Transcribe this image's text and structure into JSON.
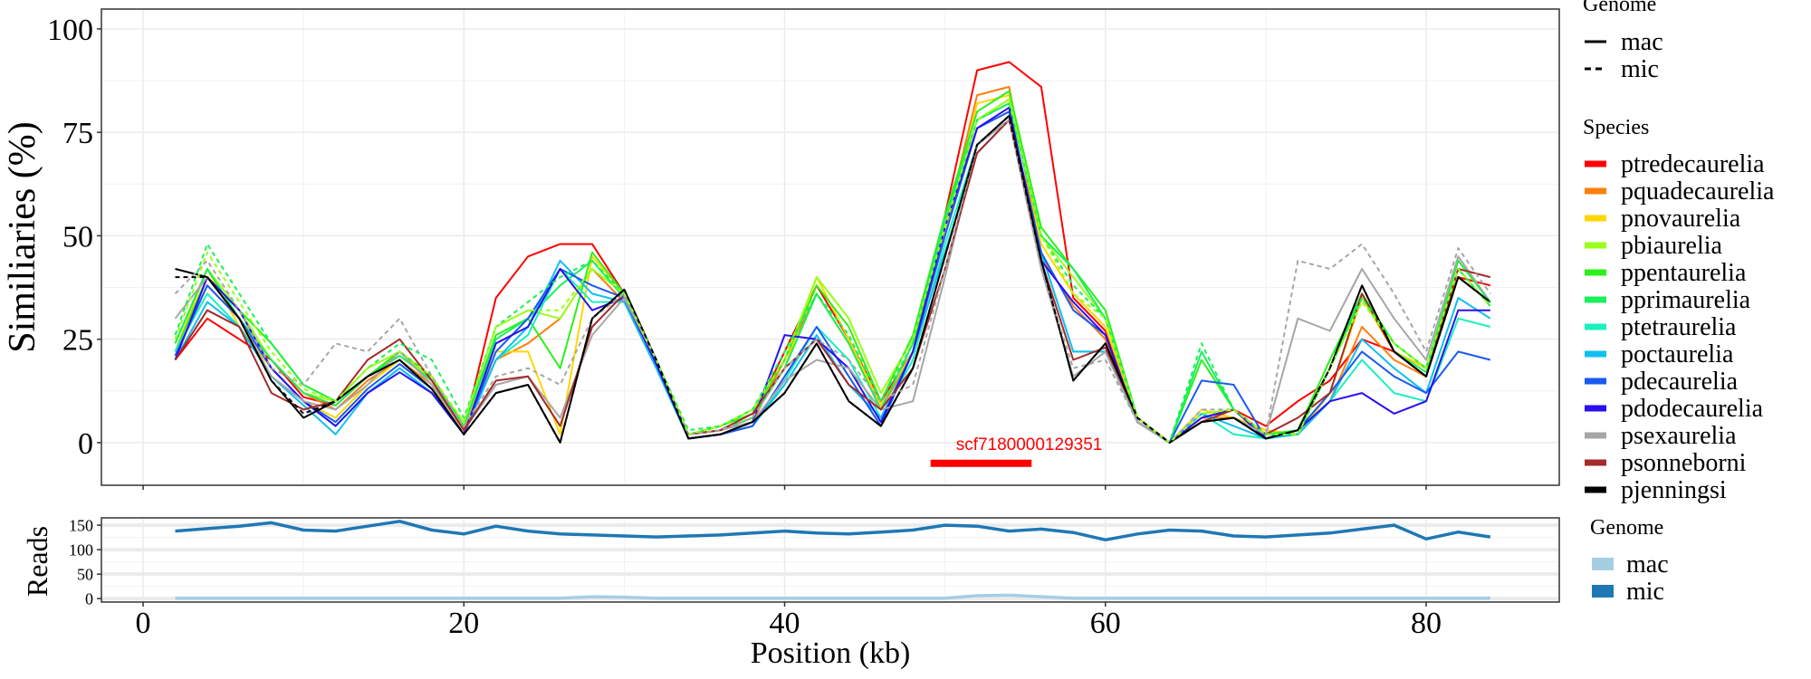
{
  "chart_data": [
    {
      "type": "line",
      "title": "",
      "xlabel": "",
      "ylabel": "Similiaries (%)",
      "xlim": [
        -2.6,
        88.3
      ],
      "ylim": [
        -10.3,
        104.8
      ],
      "xticks": [
        0,
        20,
        40,
        60,
        80
      ],
      "yticks": [
        0,
        25,
        50,
        75,
        100
      ],
      "grid": true,
      "x": [
        2,
        4,
        6,
        8,
        10,
        12,
        14,
        16,
        18,
        20,
        22,
        24,
        26,
        28,
        30,
        32,
        34,
        36,
        38,
        40,
        42,
        44,
        46,
        48,
        50,
        52,
        54,
        56,
        58,
        60,
        62,
        64,
        66,
        68,
        70,
        72,
        74,
        76,
        78,
        80,
        82,
        84
      ],
      "annotation": {
        "label": "scf7180000129351",
        "start": 49.1,
        "end": 55.4,
        "color": "#ff0000"
      },
      "legend_genome": {
        "title": "Genome",
        "items": [
          {
            "label": "mac",
            "dash": "solid"
          },
          {
            "label": "mic",
            "dash": "dashed"
          }
        ]
      },
      "legend_species_title": "Species",
      "series": [
        {
          "name": "ptredecaurelia",
          "color": "#ff0000",
          "genome": "mac",
          "values": [
            20,
            30,
            25,
            20,
            11,
            9,
            16,
            22,
            16,
            3,
            35,
            45,
            48,
            48,
            36,
            20,
            2,
            3,
            6,
            22,
            38,
            25,
            10,
            22,
            55,
            90,
            92,
            86,
            35,
            27,
            5,
            0,
            6,
            8,
            4,
            10,
            15,
            25,
            22,
            18,
            40,
            38
          ]
        },
        {
          "name": "pquadecaurelia",
          "color": "#ff7f0e",
          "genome": "mac",
          "values": [
            21,
            38,
            30,
            20,
            12,
            8,
            15,
            20,
            14,
            3,
            20,
            24,
            30,
            42,
            34,
            18,
            2,
            3,
            5,
            20,
            36,
            24,
            8,
            22,
            52,
            84,
            86,
            45,
            33,
            25,
            5,
            0,
            6,
            6,
            3,
            2,
            10,
            28,
            20,
            16,
            40,
            34
          ]
        },
        {
          "name": "pnovaurelia",
          "color": "#ffd700",
          "genome": "mac",
          "values": [
            22,
            42,
            28,
            18,
            10,
            6,
            14,
            20,
            13,
            4,
            22,
            22,
            2,
            45,
            36,
            20,
            2,
            3,
            6,
            18,
            40,
            25,
            9,
            22,
            50,
            82,
            84,
            48,
            36,
            28,
            6,
            0,
            8,
            6,
            3,
            2,
            12,
            35,
            22,
            18,
            40,
            34
          ]
        },
        {
          "name": "pbiaurelia",
          "color": "#9aff1a",
          "genome": "mac",
          "values": [
            24,
            42,
            32,
            20,
            12,
            10,
            18,
            22,
            15,
            5,
            28,
            32,
            30,
            42,
            36,
            20,
            2,
            4,
            8,
            20,
            40,
            30,
            12,
            25,
            52,
            78,
            83,
            50,
            40,
            30,
            6,
            0,
            7,
            8,
            2,
            2,
            18,
            35,
            24,
            18,
            42,
            33
          ]
        },
        {
          "name": "ppentaurelia",
          "color": "#2cf01a",
          "genome": "mac",
          "values": [
            22,
            40,
            32,
            24,
            14,
            10,
            16,
            22,
            16,
            4,
            26,
            30,
            18,
            46,
            36,
            20,
            2,
            4,
            7,
            20,
            38,
            28,
            10,
            26,
            55,
            80,
            85,
            52,
            42,
            32,
            6,
            0,
            20,
            8,
            2,
            3,
            20,
            36,
            24,
            18,
            44,
            34
          ]
        },
        {
          "name": "pprimaurelia",
          "color": "#19f05a",
          "genome": "mac",
          "values": [
            24,
            42,
            30,
            20,
            12,
            9,
            16,
            21,
            15,
            4,
            25,
            30,
            38,
            44,
            35,
            19,
            2,
            3,
            6,
            18,
            36,
            24,
            8,
            24,
            54,
            78,
            82,
            50,
            42,
            30,
            6,
            0,
            22,
            8,
            2,
            2,
            18,
            36,
            22,
            17,
            42,
            33
          ]
        },
        {
          "name": "ptetraurelia",
          "color": "#1af0c0",
          "genome": "mac",
          "values": [
            22,
            36,
            28,
            16,
            10,
            4,
            12,
            18,
            12,
            2,
            20,
            26,
            42,
            34,
            34,
            18,
            1,
            2,
            4,
            15,
            28,
            20,
            6,
            20,
            48,
            72,
            78,
            46,
            22,
            22,
            5,
            0,
            7,
            2,
            1,
            2,
            10,
            20,
            12,
            10,
            30,
            28
          ]
        },
        {
          "name": "poctaurelia",
          "color": "#12bff0",
          "genome": "mac",
          "values": [
            20,
            34,
            28,
            16,
            9,
            2,
            12,
            18,
            12,
            2,
            20,
            28,
            44,
            36,
            34,
            18,
            1,
            2,
            4,
            14,
            26,
            14,
            6,
            22,
            46,
            70,
            78,
            46,
            22,
            22,
            5,
            0,
            7,
            4,
            1,
            2,
            10,
            25,
            18,
            12,
            35,
            30
          ]
        },
        {
          "name": "pdecaurelia",
          "color": "#1a5af0",
          "genome": "mac",
          "values": [
            21,
            38,
            30,
            18,
            10,
            5,
            13,
            19,
            13,
            2,
            22,
            30,
            42,
            38,
            35,
            19,
            1,
            2,
            4,
            16,
            28,
            16,
            4,
            22,
            50,
            76,
            80,
            46,
            32,
            26,
            5,
            0,
            15,
            14,
            1,
            3,
            12,
            22,
            16,
            12,
            22,
            20
          ]
        },
        {
          "name": "pdodecaurelia",
          "color": "#2a10f0",
          "genome": "mac",
          "values": [
            20,
            40,
            32,
            18,
            10,
            4,
            12,
            17,
            12,
            2,
            24,
            28,
            42,
            32,
            35,
            19,
            1,
            2,
            5,
            26,
            25,
            18,
            5,
            22,
            52,
            76,
            81,
            44,
            34,
            26,
            5,
            0,
            6,
            8,
            1,
            3,
            10,
            12,
            7,
            10,
            32,
            32
          ]
        },
        {
          "name": "psexaurelia",
          "color": "#a6a6a6",
          "genome": "mac",
          "values": [
            30,
            40,
            30,
            16,
            10,
            8,
            14,
            22,
            14,
            3,
            14,
            16,
            6,
            26,
            35,
            20,
            2,
            3,
            5,
            15,
            20,
            18,
            8,
            10,
            40,
            72,
            78,
            42,
            16,
            22,
            5,
            0,
            5,
            6,
            2,
            30,
            27,
            42,
            30,
            20,
            45,
            34
          ]
        },
        {
          "name": "psonneborni",
          "color": "#a52a2a",
          "genome": "mac",
          "values": [
            20,
            32,
            28,
            12,
            8,
            10,
            20,
            25,
            15,
            3,
            15,
            16,
            4,
            28,
            36,
            20,
            2,
            3,
            7,
            18,
            25,
            14,
            8,
            18,
            42,
            70,
            78,
            44,
            20,
            23,
            6,
            0,
            5,
            8,
            2,
            6,
            12,
            36,
            22,
            16,
            42,
            40
          ]
        },
        {
          "name": "pjenningsi",
          "color": "#000000",
          "genome": "mac",
          "values": [
            42,
            40,
            30,
            15,
            6,
            10,
            16,
            20,
            13,
            2,
            12,
            14,
            0,
            30,
            37,
            20,
            1,
            2,
            5,
            12,
            24,
            10,
            4,
            18,
            45,
            72,
            79,
            44,
            15,
            24,
            6,
            0,
            5,
            6,
            1,
            3,
            18,
            38,
            22,
            16,
            40,
            34
          ]
        },
        {
          "name": "psexaurelia",
          "color": "#a6a6a6",
          "genome": "mic",
          "values": [
            36,
            44,
            32,
            18,
            14,
            24,
            22,
            30,
            16,
            4,
            16,
            18,
            14,
            30,
            36,
            20,
            2,
            3,
            6,
            18,
            25,
            20,
            10,
            14,
            42,
            72,
            78,
            42,
            18,
            20,
            5,
            0,
            8,
            8,
            2,
            44,
            42,
            48,
            36,
            22,
            47,
            36
          ]
        },
        {
          "name": "pprimaurelia",
          "color": "#19f05a",
          "genome": "mic",
          "values": [
            26,
            48,
            36,
            24,
            14,
            10,
            18,
            24,
            20,
            6,
            28,
            34,
            40,
            44,
            36,
            20,
            3,
            4,
            8,
            22,
            36,
            26,
            10,
            24,
            54,
            78,
            82,
            50,
            38,
            30,
            6,
            0,
            24,
            8,
            2,
            2,
            18,
            35,
            24,
            18,
            44,
            34
          ]
        },
        {
          "name": "pbiaurelia",
          "color": "#9aff1a",
          "genome": "mic",
          "values": [
            25,
            46,
            34,
            22,
            13,
            10,
            18,
            22,
            16,
            5,
            28,
            32,
            32,
            42,
            36,
            20,
            2,
            4,
            8,
            20,
            40,
            30,
            12,
            25,
            52,
            78,
            83,
            50,
            36,
            30,
            6,
            0,
            7,
            8,
            2,
            2,
            18,
            34,
            24,
            18,
            42,
            33
          ]
        },
        {
          "name": "pjenningsi",
          "color": "#000000",
          "genome": "mic",
          "values": [
            40,
            40,
            30,
            15,
            7,
            10,
            16,
            20,
            13,
            2,
            12,
            14,
            0,
            30,
            37,
            20,
            1,
            2,
            5,
            12,
            24,
            10,
            4,
            18,
            45,
            72,
            79,
            44,
            15,
            24,
            6,
            0,
            5,
            6,
            1,
            3,
            18,
            38,
            22,
            16,
            40,
            34
          ]
        }
      ]
    },
    {
      "type": "line",
      "xlabel": "Position (kb)",
      "ylabel": "Reads",
      "xlim": [
        -2.6,
        88.3
      ],
      "ylim": [
        -7,
        165
      ],
      "xticks": [
        0,
        20,
        40,
        60,
        80
      ],
      "yticks": [
        0,
        50,
        100,
        150
      ],
      "grid": true,
      "legend": {
        "title": "Genome",
        "items": [
          {
            "label": "mac",
            "color": "#a6cee3"
          },
          {
            "label": "mic",
            "color": "#1f78b4"
          }
        ]
      },
      "x": [
        2,
        4,
        6,
        8,
        10,
        12,
        14,
        16,
        18,
        20,
        22,
        24,
        26,
        28,
        30,
        32,
        34,
        36,
        38,
        40,
        42,
        44,
        46,
        48,
        50,
        52,
        54,
        56,
        58,
        60,
        62,
        64,
        66,
        68,
        70,
        72,
        74,
        76,
        78,
        80,
        82,
        84
      ],
      "series": [
        {
          "name": "mac",
          "color": "#a6cee3",
          "values": [
            1,
            1,
            1,
            1,
            1,
            1,
            1,
            1,
            1,
            1,
            1,
            1,
            1,
            4,
            3,
            1,
            1,
            1,
            1,
            1,
            1,
            1,
            1,
            1,
            1,
            6,
            7,
            4,
            1,
            1,
            1,
            1,
            1,
            1,
            1,
            1,
            1,
            1,
            1,
            1,
            1,
            1
          ]
        },
        {
          "name": "mic",
          "color": "#1f78b4",
          "values": [
            138,
            143,
            148,
            155,
            140,
            138,
            148,
            158,
            140,
            132,
            148,
            138,
            132,
            130,
            128,
            126,
            128,
            130,
            134,
            138,
            134,
            132,
            136,
            140,
            150,
            148,
            138,
            142,
            135,
            120,
            132,
            140,
            138,
            128,
            126,
            130,
            134,
            142,
            150,
            122,
            136,
            126
          ]
        }
      ]
    }
  ]
}
